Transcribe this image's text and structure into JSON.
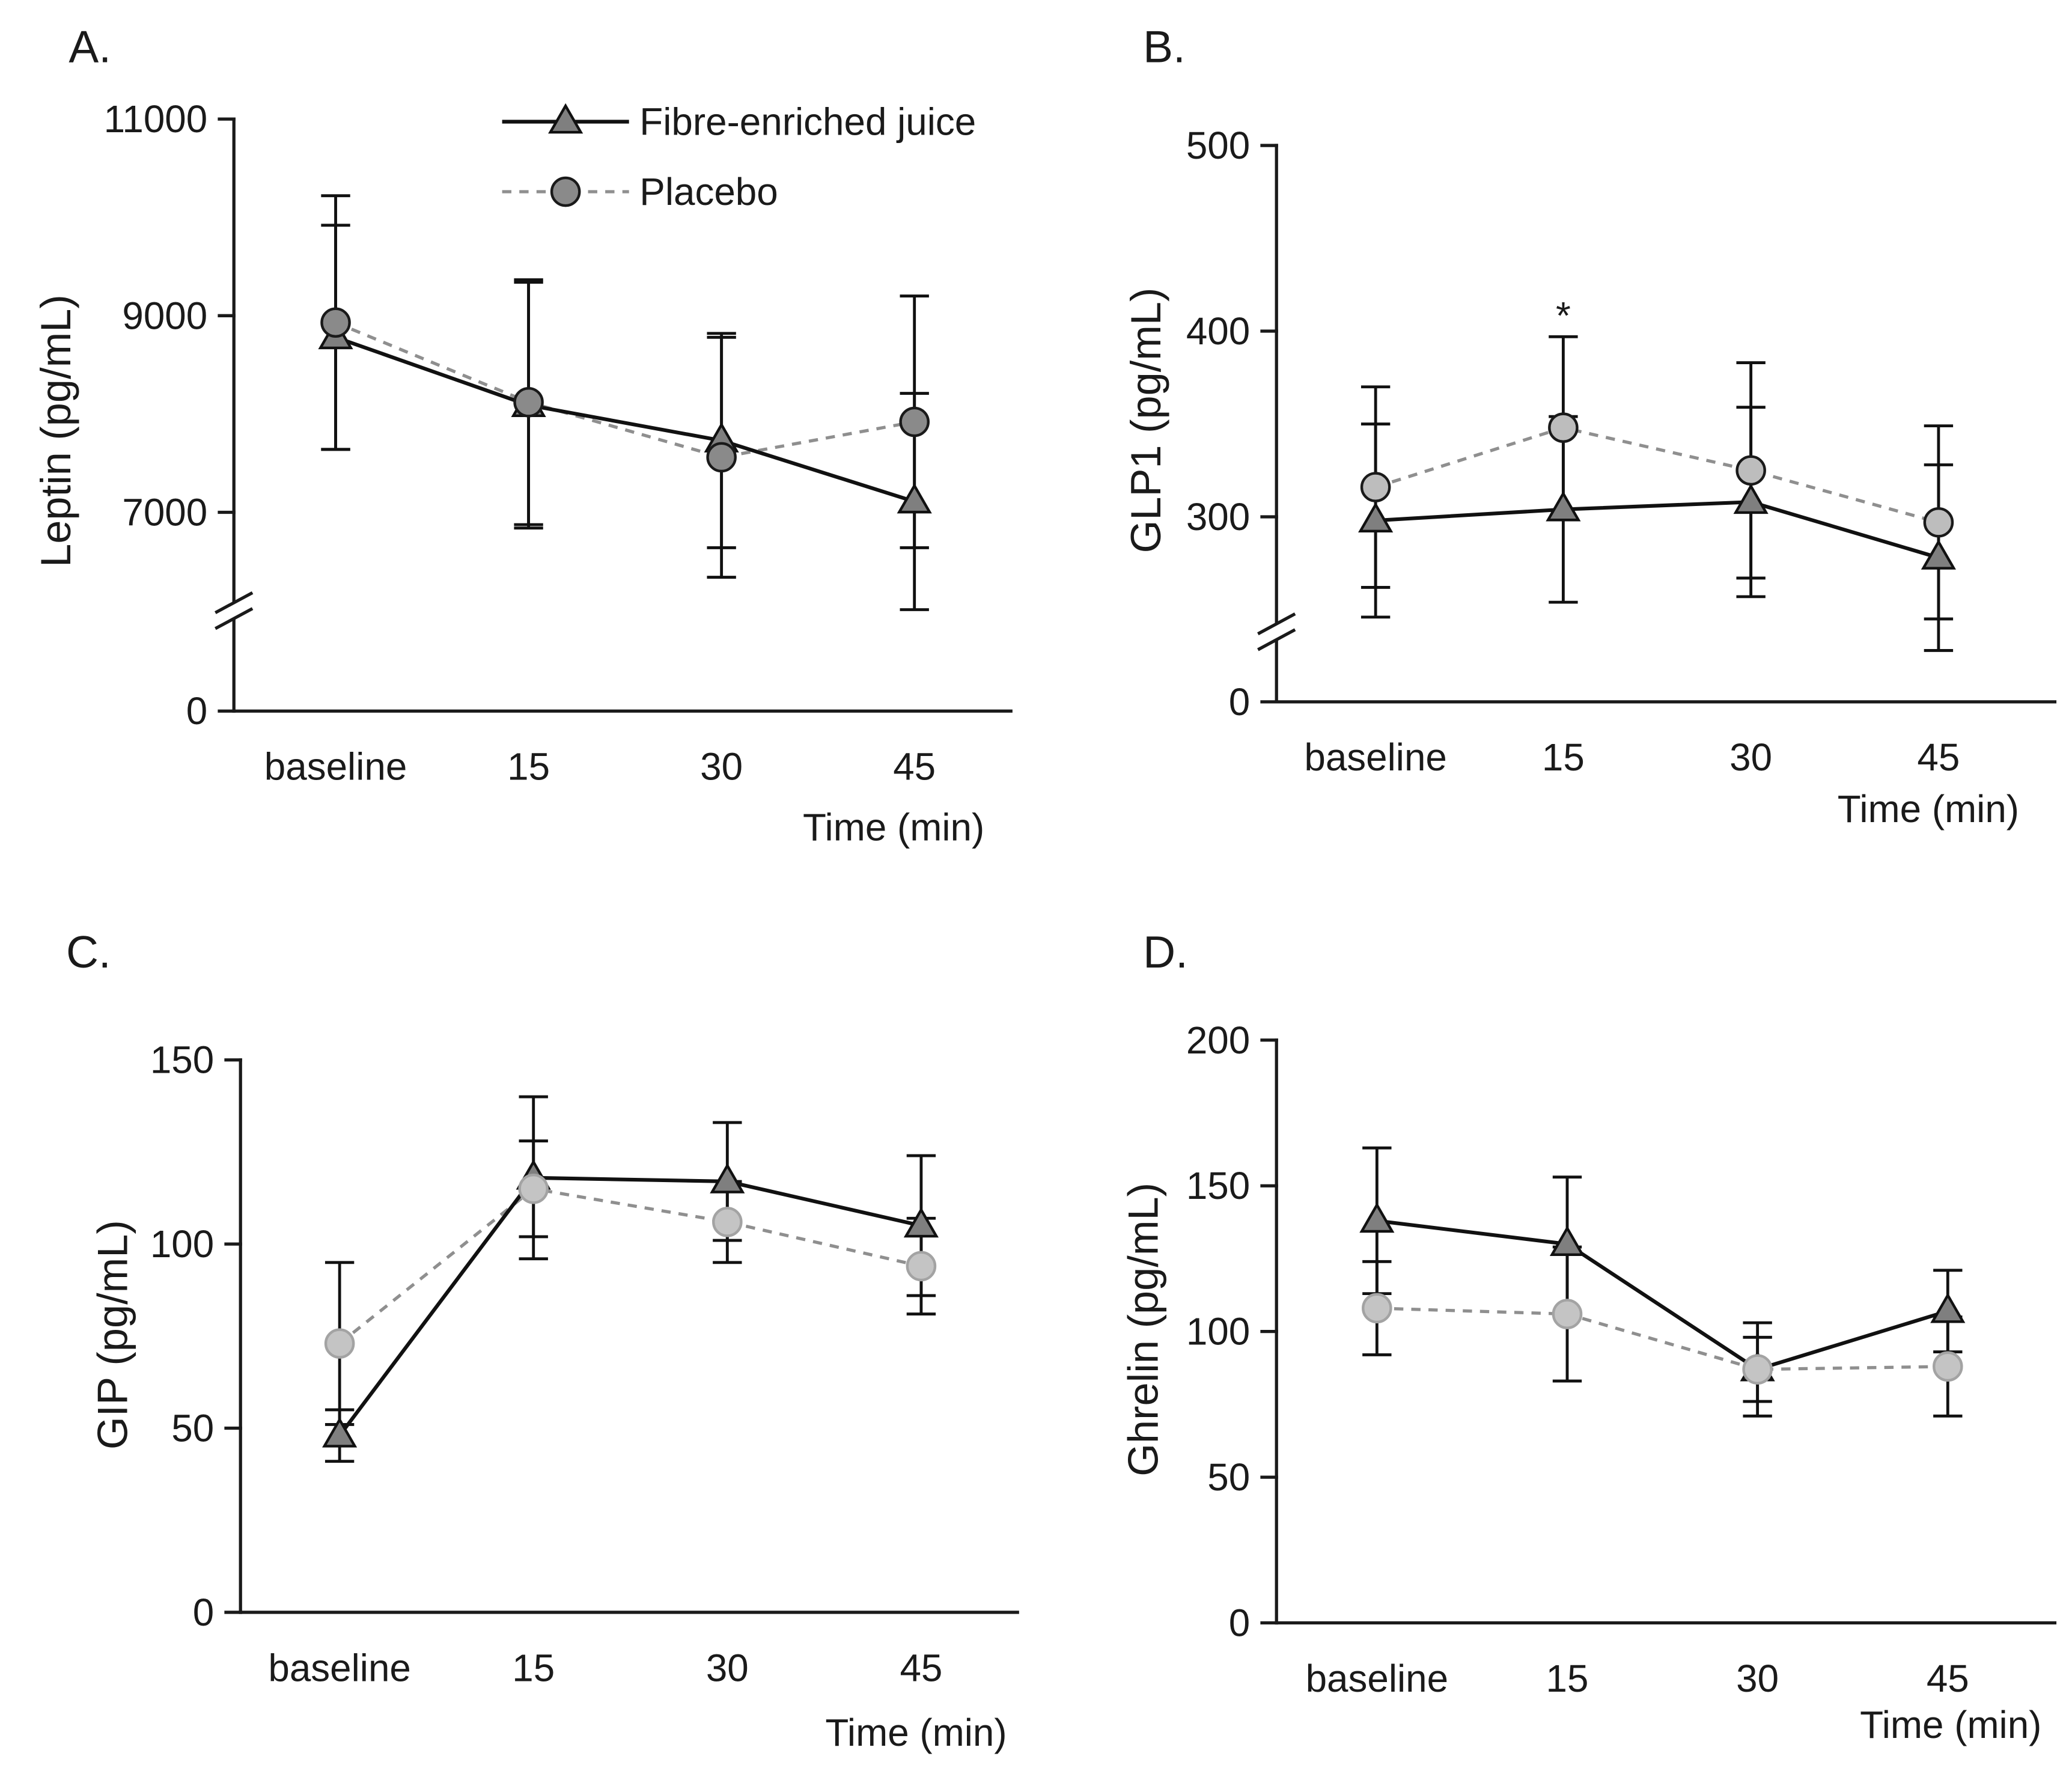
{
  "styles": {
    "fibre_line": "#111111",
    "fibre_marker_fill": "#7f7f7f",
    "fibre_marker_stroke": "#111111",
    "placebo_line": "#8f8f8f",
    "error_bar": "#111111",
    "axis": "#1a1a1a",
    "text": "#1a1a1a"
  },
  "chart_data": [
    {
      "type": "line",
      "panel": "A.",
      "ylabel": "Leptin (pg/mL)",
      "xlabel": "Time (min)",
      "categories": [
        "baseline",
        "15",
        "30",
        "45"
      ],
      "ylim": [
        0,
        11000
      ],
      "yticks": [
        0,
        7000,
        9000,
        11000
      ],
      "axis_break": [
        0,
        6000
      ],
      "legend": {
        "fibre": "Fibre-enriched juice",
        "placebo": "Placebo"
      },
      "series": {
        "fibre": {
          "mean": [
            8780,
            8090,
            7730,
            7110
          ],
          "error": [
            1140,
            1250,
            1090,
            1100
          ]
        },
        "placebo": {
          "mean": [
            8930,
            8120,
            7560,
            7920
          ],
          "error": [
            1290,
            1245,
            1220,
            1280
          ]
        }
      },
      "colors": {
        "placebo_marker_fill": "#8a8a8a",
        "placebo_marker_stroke": "#1a1a1a"
      }
    },
    {
      "type": "line",
      "panel": "B.",
      "ylabel": "GLP1 (pg/mL)",
      "xlabel": "Time (min)",
      "categories": [
        "baseline",
        "15",
        "30",
        "45"
      ],
      "ylim": [
        0,
        500
      ],
      "yticks": [
        0,
        300,
        400,
        500
      ],
      "axis_break": [
        0,
        225
      ],
      "annotation": {
        "text": "*",
        "category_index": 1
      },
      "series": {
        "fibre": {
          "mean": [
            298,
            304,
            308,
            278
          ],
          "error": [
            52,
            50,
            51,
            50
          ]
        },
        "placebo": {
          "mean": [
            316,
            348,
            325,
            297
          ],
          "error": [
            54,
            49,
            58,
            52
          ]
        }
      },
      "colors": {
        "placebo_marker_fill": "#bdbdbd",
        "placebo_marker_stroke": "#1a1a1a"
      }
    },
    {
      "type": "line",
      "panel": "C.",
      "ylabel": "GIP (pg/mL)",
      "xlabel": "Time (min)",
      "categories": [
        "baseline",
        "15",
        "30",
        "45"
      ],
      "ylim": [
        0,
        150
      ],
      "yticks": [
        0,
        50,
        100,
        150
      ],
      "series": {
        "fibre": {
          "mean": [
            48,
            118,
            117,
            105
          ],
          "error": [
            7,
            22,
            16,
            19
          ]
        },
        "placebo": {
          "mean": [
            73,
            115,
            106,
            94
          ],
          "error": [
            22,
            13,
            11,
            13
          ]
        }
      },
      "colors": {
        "placebo_marker_fill": "#c4c4c4",
        "placebo_marker_stroke": "#a3a3a3"
      }
    },
    {
      "type": "line",
      "panel": "D.",
      "ylabel": "Ghrelin (pg/mL)",
      "xlabel": "Time (min)",
      "categories": [
        "baseline",
        "15",
        "30",
        "45"
      ],
      "ylim": [
        0,
        200
      ],
      "yticks": [
        0,
        50,
        100,
        150,
        200
      ],
      "series": {
        "fibre": {
          "mean": [
            138,
            130,
            87,
            107
          ],
          "error": [
            25,
            23,
            16,
            14
          ]
        },
        "placebo": {
          "mean": [
            108,
            106,
            87,
            88
          ],
          "error": [
            16,
            23,
            11,
            17
          ]
        }
      },
      "colors": {
        "placebo_marker_fill": "#c4c4c4",
        "placebo_marker_stroke": "#a3a3a3"
      }
    }
  ]
}
